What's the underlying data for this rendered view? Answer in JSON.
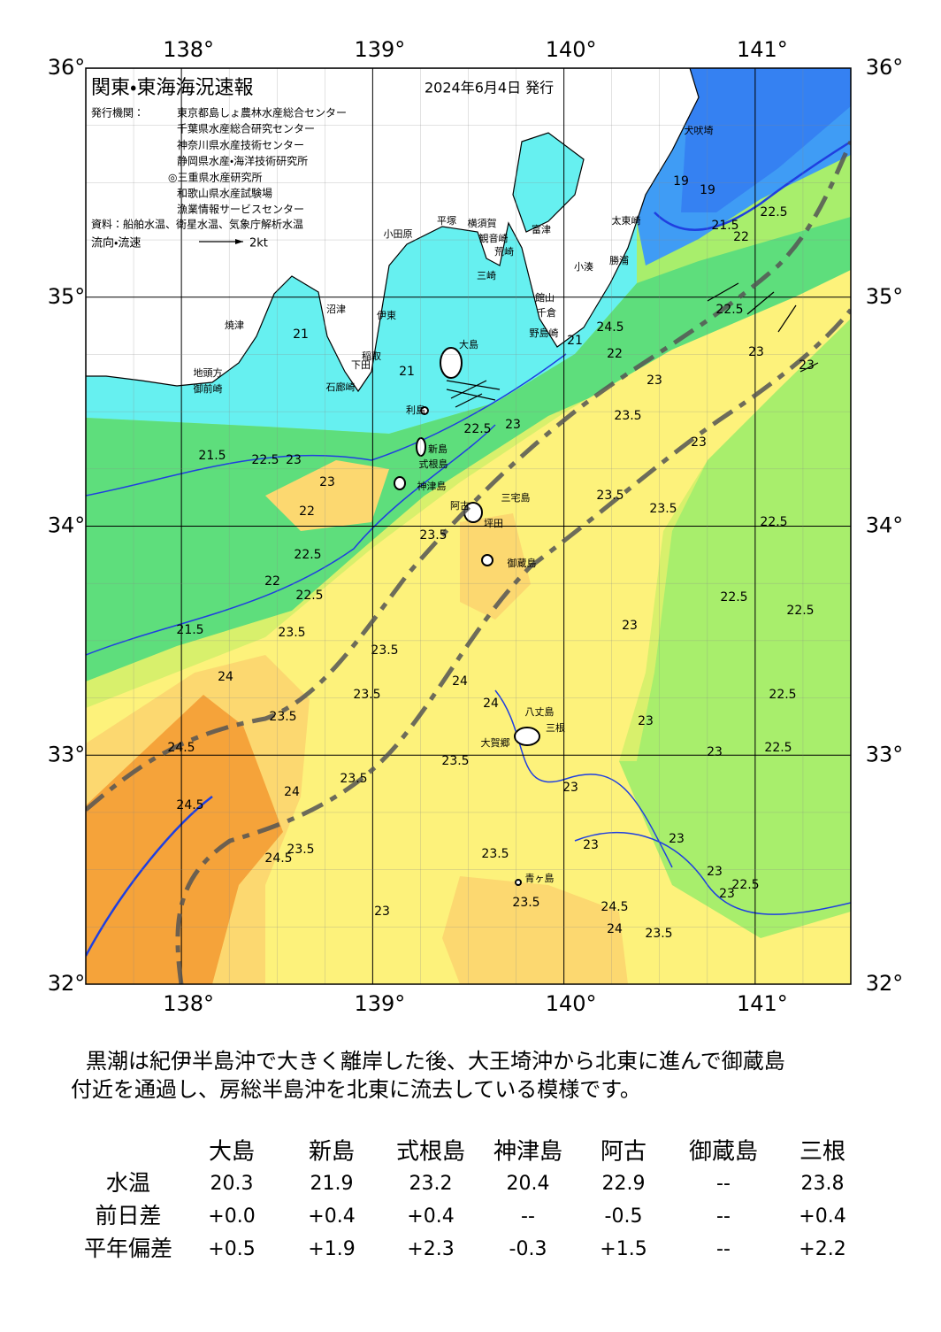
{
  "header": {
    "title": "関東・東海海況速報",
    "date": "2024年6月4日 発行",
    "issuer_label": "発行機関：",
    "issuers": [
      "東京都島しょ農林水産総合センター",
      "千葉県水産総合研究センター",
      "神奈川県水産技術センター",
      "静岡県水産・海洋技術研究所",
      "◎三重県水産研究所",
      "和歌山県水産試験場",
      "漁業情報サービスセンター"
    ],
    "source": "資料：船舶水温、衛星水温、気象庁解析水温",
    "flow_label": "流向・流速",
    "flow_scale": "2kt"
  },
  "map": {
    "lon_labels": [
      "138°",
      "139°",
      "140°",
      "141°"
    ],
    "lat_labels": [
      "36°",
      "35°",
      "34°",
      "33°",
      "32°"
    ],
    "place_names": [
      "小田原",
      "平塚",
      "横須賀",
      "観音崎",
      "富津",
      "荒崎",
      "三崎",
      "館山",
      "千倉",
      "野島崎",
      "小湊",
      "勝浦",
      "太東崎",
      "犬吠埼",
      "沼津",
      "伊東",
      "稲取",
      "下田",
      "石廊崎",
      "焼津",
      "地頭方",
      "御前崎",
      "大島",
      "利島",
      "新島",
      "式根島",
      "神津島",
      "三宅島",
      "阿古",
      "坪田",
      "御蔵島",
      "八丈島",
      "三根",
      "大賀郷",
      "青ヶ島"
    ],
    "contour_labels": [
      "21",
      "21",
      "21",
      "21.5",
      "22.5",
      "23",
      "23",
      "22",
      "22.5",
      "22",
      "22.5",
      "21.5",
      "23.5",
      "23.5",
      "23.5",
      "24",
      "23.5",
      "24.5",
      "24.5",
      "24",
      "23.5",
      "23.5",
      "24",
      "24",
      "23.5",
      "22.5",
      "23.5",
      "23.5",
      "23",
      "23",
      "23.5",
      "22.5",
      "22.5",
      "22.5",
      "23",
      "22.5",
      "22.5",
      "23",
      "23",
      "23",
      "23",
      "23",
      "23",
      "22.5",
      "23",
      "23.5",
      "23.5",
      "24.5",
      "24",
      "23.5",
      "23",
      "24.5",
      "23.5",
      "19",
      "19",
      "22.5",
      "22",
      "21.5",
      "22.5",
      "23",
      "24.5",
      "22",
      "23",
      "23"
    ]
  },
  "summary": {
    "lines": [
      "黒潮は紀伊半島沖で大きく離岸した後、大王埼沖から北東に進んで御蔵島",
      "付近を通過し、房総半島沖を北東に流去している模様です。"
    ]
  },
  "table": {
    "columns": [
      "大島",
      "新島",
      "式根島",
      "神津島",
      "阿古",
      "御蔵島",
      "三根"
    ],
    "rows": [
      {
        "label": "水温",
        "cells": [
          "20.3",
          "21.9",
          "23.2",
          "20.4",
          "22.9",
          "--",
          "23.8"
        ]
      },
      {
        "label": "前日差",
        "cells": [
          "+0.0",
          "+0.4",
          "+0.4",
          "--",
          "-0.5",
          "--",
          "+0.4"
        ]
      },
      {
        "label": "平年偏差",
        "cells": [
          "+0.5",
          "+1.9",
          "+2.3",
          "-0.3",
          "+1.5",
          "--",
          "+2.2"
        ]
      }
    ]
  }
}
